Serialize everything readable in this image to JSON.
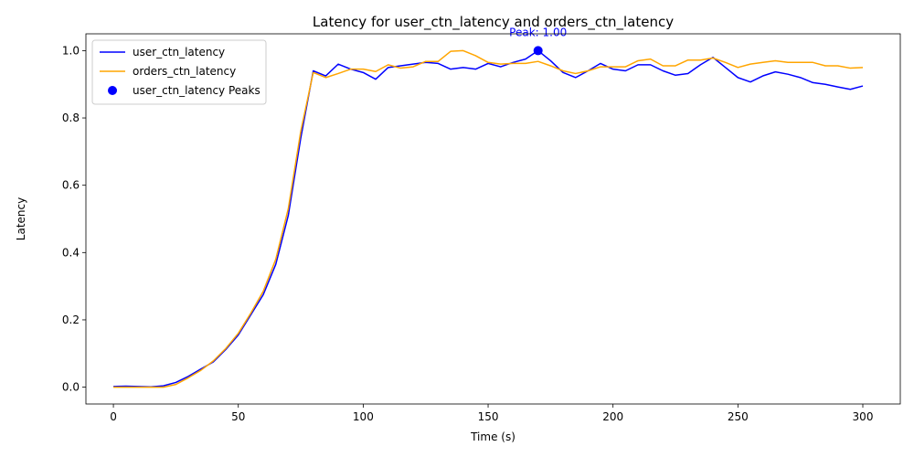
{
  "chart_data": {
    "type": "line",
    "title": "Latency for user_ctn_latency and orders_ctn_latency",
    "xlabel": "Time (s)",
    "ylabel": "Latency",
    "xlim": [
      -11,
      315
    ],
    "ylim": [
      -0.05,
      1.05
    ],
    "xticks": [
      0,
      50,
      100,
      150,
      200,
      250,
      300
    ],
    "xtick_labels": [
      "0",
      "50",
      "100",
      "150",
      "200",
      "250",
      "300"
    ],
    "yticks": [
      0.0,
      0.2,
      0.4,
      0.6,
      0.8,
      1.0
    ],
    "ytick_labels": [
      "0.0",
      "0.2",
      "0.4",
      "0.6",
      "0.8",
      "1.0"
    ],
    "grid": false,
    "legend_position": "top-left",
    "x": [
      0,
      5,
      10,
      15,
      20,
      25,
      30,
      35,
      40,
      45,
      50,
      55,
      60,
      65,
      70,
      75,
      80,
      85,
      90,
      95,
      100,
      105,
      110,
      115,
      120,
      125,
      130,
      135,
      140,
      145,
      150,
      155,
      160,
      165,
      170,
      175,
      180,
      185,
      190,
      195,
      200,
      205,
      210,
      215,
      220,
      225,
      230,
      235,
      240,
      245,
      250,
      255,
      260,
      265,
      270,
      275,
      280,
      285,
      290,
      295,
      300
    ],
    "series": [
      {
        "name": "user_ctn_latency",
        "color": "#0000ff",
        "style": "line",
        "values": [
          0.002,
          0.003,
          0.002,
          0.001,
          0.004,
          0.014,
          0.032,
          0.054,
          0.075,
          0.112,
          0.155,
          0.215,
          0.275,
          0.365,
          0.51,
          0.74,
          0.94,
          0.925,
          0.96,
          0.945,
          0.935,
          0.915,
          0.95,
          0.955,
          0.96,
          0.965,
          0.962,
          0.945,
          0.95,
          0.945,
          0.962,
          0.952,
          0.965,
          0.975,
          1.0,
          0.97,
          0.935,
          0.92,
          0.94,
          0.962,
          0.945,
          0.94,
          0.958,
          0.958,
          0.94,
          0.927,
          0.932,
          0.958,
          0.98,
          0.95,
          0.92,
          0.907,
          0.925,
          0.937,
          0.93,
          0.92,
          0.905,
          0.9,
          0.892,
          0.885,
          0.895
        ]
      },
      {
        "name": "orders_ctn_latency",
        "color": "#ffa500",
        "style": "line",
        "values": [
          0.0,
          0.0,
          0.0,
          0.0,
          0.0,
          0.008,
          0.028,
          0.05,
          0.078,
          0.115,
          0.16,
          0.22,
          0.285,
          0.38,
          0.53,
          0.76,
          0.935,
          0.92,
          0.932,
          0.945,
          0.945,
          0.938,
          0.958,
          0.948,
          0.952,
          0.968,
          0.968,
          0.998,
          1.0,
          0.985,
          0.965,
          0.96,
          0.962,
          0.962,
          0.968,
          0.955,
          0.94,
          0.932,
          0.94,
          0.952,
          0.952,
          0.952,
          0.97,
          0.975,
          0.955,
          0.955,
          0.972,
          0.972,
          0.978,
          0.965,
          0.95,
          0.96,
          0.965,
          0.97,
          0.965,
          0.965,
          0.965,
          0.955,
          0.955,
          0.948,
          0.95
        ]
      },
      {
        "name": "user_ctn_latency Peaks",
        "color": "#0000ff",
        "style": "scatter",
        "points": [
          {
            "x": 170,
            "y": 1.0
          }
        ]
      }
    ],
    "annotations": [
      {
        "text": "Peak: 1.00",
        "x": 170,
        "y": 1.0,
        "color": "#0000ff"
      }
    ]
  }
}
